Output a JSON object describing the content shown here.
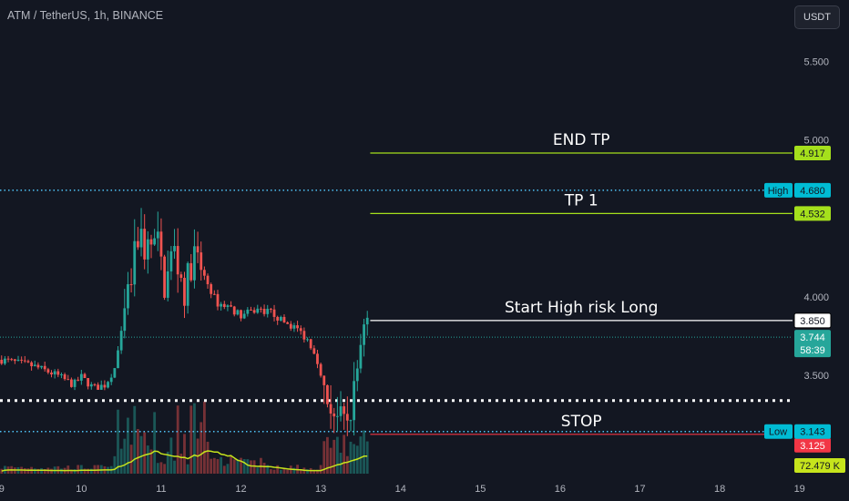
{
  "header": {
    "title": "ATM / TetherUS, 1h, BINANCE",
    "currency_button": "USDT"
  },
  "colors": {
    "background": "#131722",
    "up": "#26a69a",
    "down": "#ef5350",
    "tp_line": "#a5e01c",
    "stop_line": "#f23645",
    "dotted_blue": "#4fc3f7",
    "volume_ma": "#c6e41c",
    "entry_line": "#ffffff"
  },
  "chart_data": {
    "type": "candlestick",
    "symbol": "ATM / TetherUS",
    "interval": "1h",
    "exchange": "BINANCE",
    "ylim": [
      3.06,
      5.66
    ],
    "xlim": [
      8.98,
      19.62
    ],
    "y_ticks": [
      "5.500",
      "5.000",
      "4.000",
      "3.500"
    ],
    "x_ticks": [
      "9",
      "10",
      "11",
      "12",
      "13",
      "14",
      "15",
      "16",
      "17",
      "18",
      "19"
    ],
    "price_path": [
      [
        9.0,
        3.6
      ],
      [
        9.4,
        3.56
      ],
      [
        9.7,
        3.5
      ],
      [
        9.9,
        3.44
      ],
      [
        10.0,
        3.49
      ],
      [
        10.15,
        3.42
      ],
      [
        10.3,
        3.44
      ],
      [
        10.42,
        3.55
      ],
      [
        10.5,
        3.76
      ],
      [
        10.62,
        4.1
      ],
      [
        10.72,
        4.42
      ],
      [
        10.8,
        4.3
      ],
      [
        10.95,
        4.35
      ],
      [
        11.05,
        4.05
      ],
      [
        11.15,
        4.32
      ],
      [
        11.3,
        4.02
      ],
      [
        11.4,
        4.28
      ],
      [
        11.55,
        4.12
      ],
      [
        11.7,
        3.96
      ],
      [
        11.85,
        3.94
      ],
      [
        12.0,
        3.88
      ],
      [
        12.2,
        3.92
      ],
      [
        12.4,
        3.9
      ],
      [
        12.5,
        3.85
      ],
      [
        12.7,
        3.8
      ],
      [
        12.85,
        3.72
      ],
      [
        12.95,
        3.62
      ],
      [
        13.05,
        3.35
      ],
      [
        13.15,
        3.3
      ],
      [
        13.25,
        3.2
      ],
      [
        13.3,
        3.17
      ],
      [
        13.4,
        3.32
      ],
      [
        13.5,
        3.72
      ],
      [
        13.55,
        3.9
      ],
      [
        13.62,
        3.8
      ]
    ],
    "levels": [
      {
        "label": "END TP",
        "price": 4.917,
        "tag": "4.917"
      },
      {
        "label": "TP 1",
        "price": 4.532,
        "tag": "4.532"
      },
      {
        "label": "Start High risk Long",
        "price": 3.85,
        "tag": "3.850"
      },
      {
        "label": "STOP",
        "price": 3.125,
        "tag": "3.125"
      }
    ],
    "high": {
      "label": "High",
      "price": 4.68,
      "tag": "4.680"
    },
    "low": {
      "label": "Low",
      "price": 3.143,
      "tag": "3.143"
    },
    "support_line_price": 3.34,
    "last_price": {
      "price": 3.744,
      "tag": "3.744",
      "countdown": "58:39"
    },
    "volume": {
      "last_tag": "72.479 K"
    }
  }
}
